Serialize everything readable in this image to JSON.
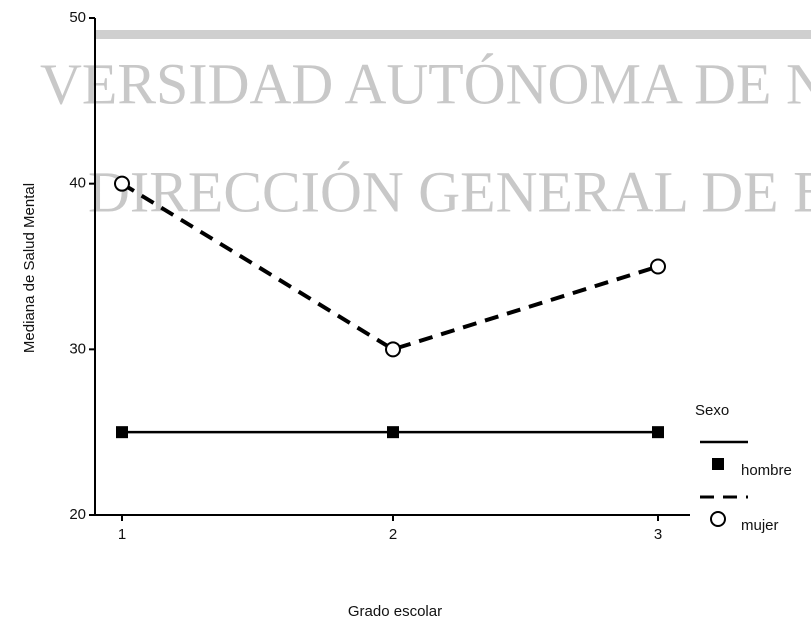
{
  "chart_data": {
    "type": "line",
    "x_label": "Grado escolar",
    "y_label": "Mediana de Salud Mental",
    "legend_title": "Sexo",
    "legend_position": "right",
    "annotations": [
      "VERSIDAD AUTÓNOMA DE NU",
      "DIRECCIÓN GENERAL DE BIBLIOT"
    ],
    "categories": [
      "1",
      "2",
      "3"
    ],
    "series": [
      {
        "name": "hombre",
        "color": "#000000",
        "linestyle": "solid",
        "marker": "square",
        "values": [
          25,
          25,
          25
        ]
      },
      {
        "name": "mujer",
        "color": "#000000",
        "linestyle": "dashed",
        "marker": "circle",
        "values": [
          40,
          30,
          35
        ]
      }
    ],
    "ylim": [
      20,
      50
    ],
    "yticks": [
      20,
      30,
      40,
      50
    ]
  }
}
